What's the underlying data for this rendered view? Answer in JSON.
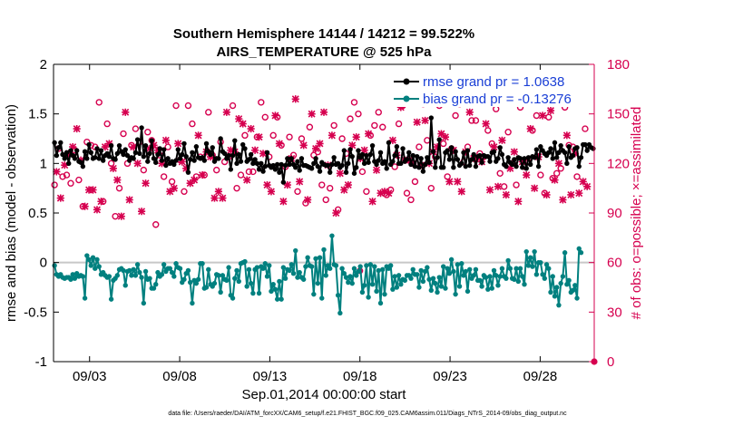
{
  "chart_data": {
    "type": "line",
    "title_line1": "Southern Hemisphere 14144 / 14212 = 99.522%",
    "title_line2": "AIRS_TEMPERATURE @ 525 hPa",
    "xlabel": "Sep.01,2014 00:00:00 start",
    "ylabel_left": "rmse and bias (model - observation)",
    "ylabel_right": "# of obs: o=possible; ×=assimilated",
    "footer": "data file: /Users/raeder/DAI/ATM_forcXX/CAM6_setup/f.e21.FHIST_BGC.f09_025.CAM6assim.011/Diags_NTrS_2014-09/obs_diag_output.nc",
    "x_tick_labels": [
      "09/03",
      "09/08",
      "09/13",
      "09/18",
      "09/23",
      "09/28"
    ],
    "x_tick_days": [
      3,
      8,
      13,
      18,
      23,
      28
    ],
    "xlim_days": [
      1.0,
      31.0
    ],
    "ylim_left": [
      -1,
      2
    ],
    "y_ticks_left": [
      "-1",
      "-0.5",
      "0",
      "0.5",
      "1",
      "1.5",
      "2"
    ],
    "ylim_right": [
      0,
      180
    ],
    "y_ticks_right": [
      "0",
      "30",
      "60",
      "90",
      "120",
      "150",
      "180"
    ],
    "colors": {
      "rmse": "#000000",
      "bias": "#00807f",
      "obs": "#d6004f",
      "zero": "#c8c8c8",
      "legend_text": "#1a3fd6"
    },
    "legend": [
      {
        "name": "rmse grand pr = 1.0638",
        "series": "rmse"
      },
      {
        "name": "bias grand pr = -0.13276",
        "series": "bias"
      }
    ],
    "series": [
      {
        "name": "rmse",
        "values": [
          1.21,
          1.08,
          1.16,
          1.21,
          1.09,
          1.05,
          1.11,
          1.0,
          1.13,
          1.08,
          1.05,
          1.13,
          1.02,
          1.01,
          0.97,
          1.12,
          1.05,
          1.19,
          1.11,
          1.05,
          1.06,
          1.15,
          1.05,
          1.13,
          1.03,
          1.08,
          1.1,
          1.07,
          1.18,
          1.05,
          1.04,
          1.1,
          1.18,
          1.12,
          1.09,
          1.14,
          1.08,
          1.03,
          1.06,
          1.05,
          1.11,
          1.24,
          1.1,
          1.36,
          1.07,
          1.18,
          1.02,
          1.1,
          1.23,
          1.05,
          1.01,
          1.09,
          1.15,
          1.03,
          1.14,
          0.98,
          1.05,
          1.0,
          1.02,
          0.99,
          1.03,
          1.14,
          1.05,
          1.09,
          1.2,
          1.07,
          0.91,
          1.04,
          1.11,
          1.03,
          1.17,
          1.06,
          1.05,
          1.06,
          1.03,
          1.2,
          1.12,
          1.09,
          1.16,
          1.02,
          1.05,
          1.05,
          1.25,
          1.12,
          1.1,
          1.05,
          1.08,
          0.94,
          1.08,
          1.23,
          1.0,
          1.09,
          1.02,
          1.19,
          1.15,
          1.02,
          1.04,
          1.09,
          1.0,
          1.04,
          1.0,
          0.94,
          1.0,
          0.92,
          0.97,
          1.11,
          0.98,
          0.96,
          0.98,
          0.94,
          0.99,
          0.91,
          0.99,
          0.81,
          0.98,
          1.05,
          0.99,
          1.05,
          0.99,
          0.96,
          1.02,
          0.93,
          1.05,
          0.98,
          0.98,
          0.97,
          0.96,
          0.95,
          1.0,
          1.05,
          0.97,
          0.92,
          1.01,
          0.99,
          0.98,
          0.98,
          0.91,
          0.99,
          1.06,
          0.99,
          1.0,
          0.96,
          0.98,
          1.13,
          0.91,
          1.0,
          1.14,
          1.07,
          0.9,
          0.96,
          1.13,
          1.06,
          1.09,
          1.0,
          1.08,
          1.01,
          1.09,
          1.18,
          1.02,
          0.99,
          1.03,
          1.11,
          1.0,
          1.02,
          0.95,
          1.21,
          0.99,
          1.02,
          1.08,
          1.17,
          1.0,
          1.0,
          1.15,
          1.02,
          1.04,
          1.11,
          0.99,
          1.08,
          0.97,
          1.07,
          0.96,
          1.05,
          0.92,
          0.99,
          1.06,
          1.01,
          1.46,
          1.12,
          0.96,
          1.06,
          1.24,
          0.96,
          0.96,
          1.11,
          1.13,
          1.04,
          1.16,
          0.96,
          1.12,
          1.04,
          0.98,
          1.0,
          1.11,
          0.97,
          1.13,
          0.98,
          1.04,
          1.09,
          0.97,
          1.07,
          1.08,
          1.01,
          1.08,
          1.07,
          1.07,
          1.02,
          1.11,
          1.12,
          1.02,
          1.05,
          1.16,
          1.09,
          0.99,
          0.97,
          1.06,
          1.01,
          0.99,
          1.04,
          0.97,
          1.06,
          1.05,
          0.96,
          1.05,
          0.95,
          1.06,
          0.99,
          1.07,
          1.06,
          1.14,
          0.97,
          1.17,
          1.13,
          1.1,
          1.08,
          1.11,
          1.15,
          1.05,
          1.21,
          1.06,
          1.11,
          1.18,
          1.13,
          1.11,
          1.0,
          1.17,
          1.06,
          1.08,
          1.15,
          1.16,
          0.97,
          1.06,
          1.19,
          1.19,
          1.13,
          1.19,
          1.16,
          1.15
        ]
      },
      {
        "name": "bias",
        "values": [
          -0.03,
          -0.12,
          -0.14,
          -0.12,
          -0.15,
          -0.16,
          -0.15,
          -0.15,
          -0.17,
          -0.12,
          -0.16,
          -0.11,
          -0.14,
          -0.13,
          -0.14,
          -0.36,
          0.07,
          0.03,
          -0.03,
          0.05,
          -0.06,
          0.03,
          -0.04,
          -0.12,
          -0.1,
          -0.13,
          -0.15,
          -0.14,
          -0.37,
          -0.18,
          -0.16,
          -0.13,
          -0.07,
          -0.06,
          -0.08,
          -0.23,
          -0.09,
          -0.08,
          -0.13,
          -0.07,
          -0.13,
          -0.02,
          -0.1,
          -0.15,
          -0.41,
          -0.09,
          -0.17,
          -0.16,
          -0.26,
          -0.26,
          -0.22,
          -0.1,
          -0.14,
          -0.12,
          -0.02,
          -0.09,
          -0.06,
          -0.06,
          -0.1,
          -0.14,
          -0.01,
          -0.05,
          -0.06,
          -0.2,
          -0.17,
          -0.11,
          -0.08,
          -0.2,
          -0.41,
          -0.18,
          -0.21,
          -0.17,
          -0.01,
          -0.01,
          -0.26,
          -0.25,
          -0.07,
          -0.22,
          -0.24,
          -0.21,
          -0.12,
          -0.13,
          -0.3,
          -0.13,
          -0.17,
          -0.18,
          -0.05,
          -0.33,
          -0.36,
          -0.16,
          -0.08,
          -0.19,
          -0.01,
          0.0,
          0.01,
          -0.24,
          -0.07,
          -0.21,
          -0.31,
          -0.07,
          -0.05,
          -0.31,
          -0.04,
          -0.06,
          -0.01,
          -0.14,
          -0.03,
          -0.29,
          -0.22,
          -0.27,
          -0.37,
          -0.19,
          -0.37,
          -0.05,
          -0.16,
          -0.07,
          -0.08,
          -0.02,
          -0.11,
          0.12,
          -0.15,
          -0.1,
          -0.15,
          -0.17,
          -0.04,
          0.05,
          -0.03,
          -0.04,
          -0.32,
          0.04,
          -0.21,
          0.05,
          -0.36,
          0.13,
          -0.13,
          -0.03,
          -0.06,
          0.27,
          -0.02,
          -0.03,
          -0.33,
          -0.51,
          -0.06,
          -0.11,
          -0.15,
          -0.2,
          -0.14,
          -0.21,
          -0.06,
          -0.13,
          -0.09,
          -0.04,
          -0.3,
          -0.23,
          -0.03,
          -0.35,
          -0.02,
          -0.22,
          -0.04,
          -0.29,
          -0.08,
          -0.41,
          -0.07,
          -0.32,
          -0.04,
          -0.06,
          -0.03,
          -0.27,
          -0.14,
          -0.25,
          -0.13,
          -0.22,
          -0.17,
          -0.18,
          -0.13,
          -0.13,
          -0.16,
          -0.07,
          -0.12,
          -0.12,
          -0.25,
          -0.08,
          -0.19,
          -0.09,
          -0.05,
          -0.17,
          -0.28,
          -0.16,
          -0.21,
          -0.3,
          -0.15,
          -0.24,
          -0.04,
          -0.26,
          -0.06,
          -0.11,
          0.03,
          -0.09,
          -0.32,
          -0.02,
          -0.24,
          -0.01,
          -0.13,
          -0.09,
          -0.29,
          -0.07,
          -0.16,
          -0.13,
          -0.07,
          -0.18,
          -0.18,
          -0.24,
          -0.13,
          -0.15,
          -0.27,
          -0.14,
          -0.26,
          -0.08,
          -0.13,
          -0.23,
          -0.14,
          -0.06,
          -0.14,
          -0.16,
          0.02,
          -0.06,
          -0.16,
          -0.17,
          -0.06,
          -0.19,
          -0.06,
          -0.14,
          -0.22,
          0.11,
          -0.03,
          0.05,
          -0.04,
          0.11,
          -0.12,
          0.0,
          0.0,
          -0.12,
          -0.16,
          -0.02,
          -0.06,
          -0.3,
          -0.14,
          -0.34,
          -0.25,
          -0.43,
          -0.21,
          -0.14,
          0.1,
          -0.22,
          -0.18,
          -0.3,
          -0.28,
          -0.23,
          -0.36,
          0.14,
          0.1
        ]
      },
      {
        "name": "obs",
        "values": [
          107,
          115,
          129,
          99,
          112,
          119,
          113,
          126,
          108,
          130,
          128,
          141,
          110,
          122,
          94,
          94,
          133,
          104,
          131,
          104,
          130,
          92,
          157,
          97,
          97,
          130,
          144,
          132,
          120,
          117,
          88,
          110,
          105,
          88,
          138,
          151,
          120,
          98,
          131,
          130,
          141,
          120,
          133,
          91,
          116,
          108,
          139,
          129,
          134,
          131,
          83,
          128,
          125,
          120,
          112,
          134,
          130,
          103,
          109,
          105,
          155,
          132,
          122,
          121,
          103,
          117,
          155,
          108,
          144,
          110,
          112,
          137,
          124,
          113,
          113,
          127,
          151,
          124,
          125,
          99,
          116,
          103,
          133,
          99,
          121,
          151,
          124,
          128,
          155,
          127,
          105,
          147,
          113,
          144,
          137,
          110,
          115,
          141,
          115,
          128,
          136,
          136,
          157,
          126,
          148,
          107,
          124,
          103,
          137,
          149,
          148,
          132,
          131,
          97,
          118,
          107,
          136,
          123,
          125,
          159,
          103,
          109,
          135,
          131,
          96,
          98,
          142,
          150,
          125,
          129,
          127,
          132,
          107,
          151,
          98,
          119,
          105,
          137,
          143,
          90,
          92,
          114,
          135,
          104,
          126,
          107,
          147,
          131,
          157,
          136,
          150,
          123,
          115,
          128,
          103,
          138,
          137,
          97,
          143,
          116,
          151,
          102,
          142,
          103,
          101,
          102,
          104,
          134,
          118,
          125,
          144,
          154,
          155,
          122,
          102,
          122,
          98,
          120,
          109,
          145,
          130,
          119,
          156,
          146,
          134,
          120,
          105,
          127,
          124,
          130,
          155,
          138,
          132,
          136,
          112,
          109,
          129,
          128,
          149,
          109,
          156,
          103,
          121,
          127,
          130,
          151,
          146,
          123,
          146,
          123,
          126,
          121,
          124,
          144,
          140,
          104,
          132,
          130,
          153,
          106,
          114,
          134,
          106,
          101,
          139,
          117,
          120,
          127,
          107,
          97,
          154,
          121,
          118,
          113,
          121,
          141,
          140,
          105,
          149,
          124,
          113,
          149,
          102,
          101,
          148,
          152,
          111,
          110,
          114,
          120,
          117,
          98,
          154,
          137,
          131,
          101,
          130,
          126,
          112,
          102,
          159,
          109,
          141,
          106
        ]
      }
    ],
    "extra_obs_points": [
      {
        "day": 18.0,
        "value": 55
      },
      {
        "day": 31.0,
        "value": 0
      }
    ]
  }
}
